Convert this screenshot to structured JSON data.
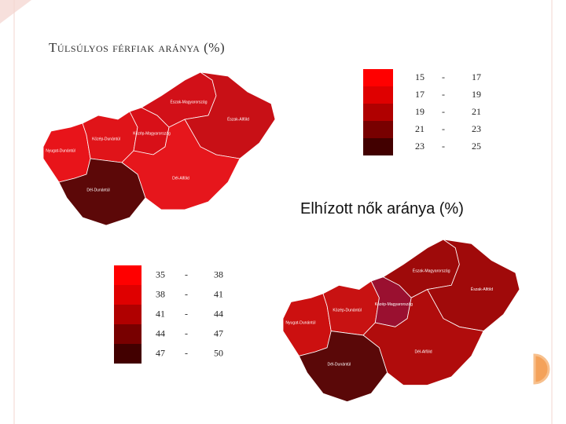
{
  "maps": [
    {
      "title": "Túlsúlyos férfiak aránya (%)",
      "regions": [
        {
          "label": "Nyugat-Dunántúl",
          "color": "#e8141a"
        },
        {
          "label": "Közép-Dunántúl",
          "color": "#e01419"
        },
        {
          "label": "Közép-Magyarország",
          "color": "#d81018"
        },
        {
          "label": "Észak-Magyarország",
          "color": "#d21018"
        },
        {
          "label": "Észak-Alföld",
          "color": "#c81016"
        },
        {
          "label": "Dél-Alföld",
          "color": "#e6161c"
        },
        {
          "label": "Dél-Dunántúl",
          "color": "#5c0808"
        }
      ],
      "legend": {
        "separator": "-",
        "rows": [
          {
            "from": 15,
            "to": 17,
            "color": "#ff0000"
          },
          {
            "from": 17,
            "to": 19,
            "color": "#df0000"
          },
          {
            "from": 19,
            "to": 21,
            "color": "#b00000"
          },
          {
            "from": 21,
            "to": 23,
            "color": "#780000"
          },
          {
            "from": 23,
            "to": 25,
            "color": "#420000"
          }
        ]
      }
    },
    {
      "title": "Elhízott nők aránya (%)",
      "regions": [
        {
          "label": "Nyugat-Dunántúl",
          "color": "#cc1010"
        },
        {
          "label": "Közép-Dunántúl",
          "color": "#c81212"
        },
        {
          "label": "Közép-Magyarország",
          "color": "#9a1030"
        },
        {
          "label": "Észak-Magyarország",
          "color": "#9e0a0a"
        },
        {
          "label": "Észak-Alföld",
          "color": "#a00a0a"
        },
        {
          "label": "Dél-Alföld",
          "color": "#b00c0c"
        },
        {
          "label": "Dél-Dunántúl",
          "color": "#5a0808"
        }
      ],
      "legend": {
        "separator": "-",
        "rows": [
          {
            "from": 35,
            "to": 38,
            "color": "#ff0000"
          },
          {
            "from": 38,
            "to": 41,
            "color": "#df0000"
          },
          {
            "from": 41,
            "to": 44,
            "color": "#b00000"
          },
          {
            "from": 44,
            "to": 47,
            "color": "#780000"
          },
          {
            "from": 47,
            "to": 50,
            "color": "#420000"
          }
        ]
      }
    }
  ]
}
